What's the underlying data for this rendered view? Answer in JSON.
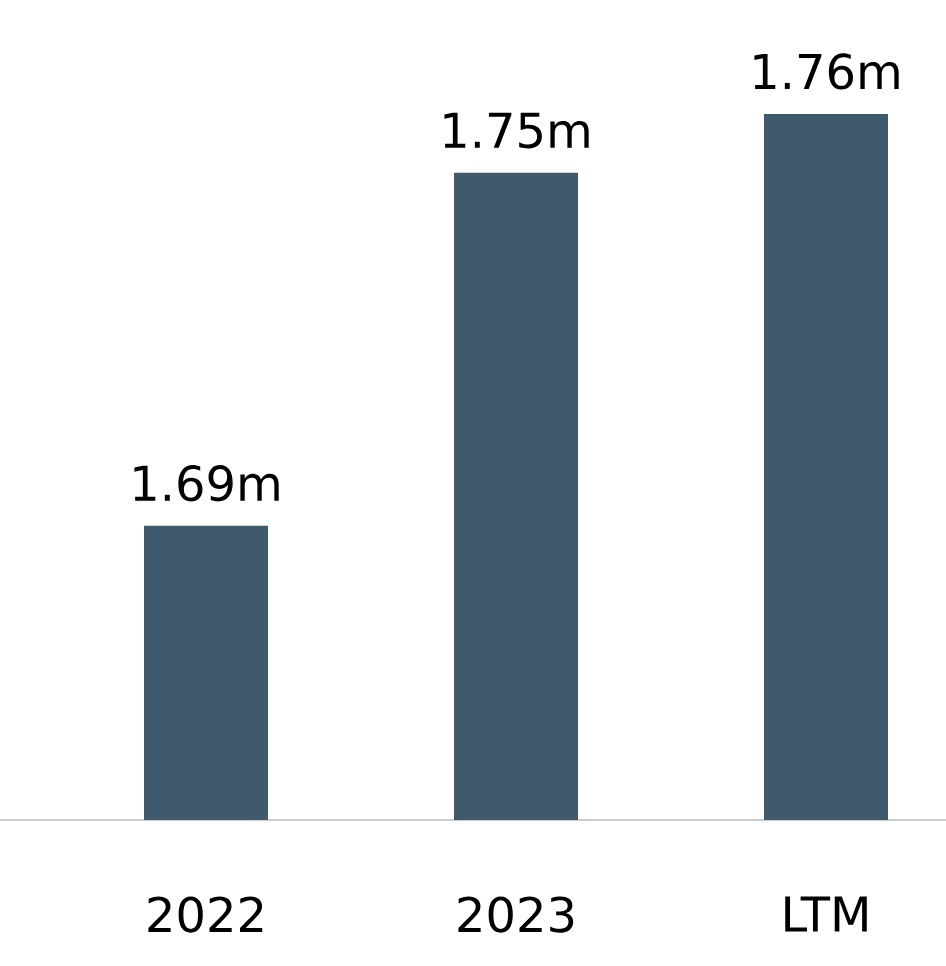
{
  "chart_data": {
    "type": "bar",
    "categories": [
      "2022",
      "2023",
      "LTM"
    ],
    "values": [
      1.69,
      1.75,
      1.76
    ],
    "value_labels": [
      "1.69m",
      "1.75m",
      "1.76m"
    ],
    "color": "#3f5a6d",
    "ylim": [
      1.64,
      1.76
    ],
    "tick_labels": "x"
  }
}
